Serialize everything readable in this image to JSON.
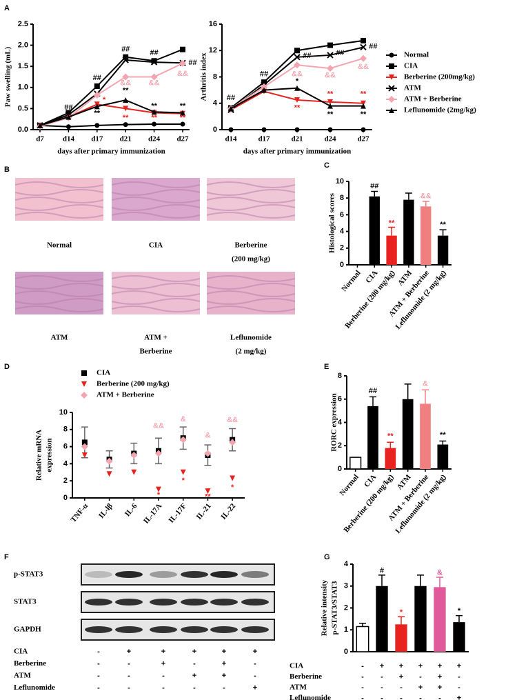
{
  "panel_labels": [
    "A",
    "B",
    "C",
    "D",
    "E",
    "F",
    "G"
  ],
  "histology": {
    "labels": [
      [
        "Normal"
      ],
      [
        "CIA"
      ],
      [
        "Berberine",
        "(200 mg/kg)"
      ],
      [
        "ATM"
      ],
      [
        "ATM +",
        "Berberine"
      ],
      [
        "Leflunomide",
        "(2 mg/kg)"
      ]
    ]
  },
  "blot": {
    "rows": [
      "p-STAT3",
      "STAT3",
      "GAPDH"
    ],
    "treatments": [
      {
        "name": "CIA",
        "signs": [
          "-",
          "+",
          "+",
          "+",
          "+",
          "+"
        ]
      },
      {
        "name": "Berberine",
        "signs": [
          "-",
          "-",
          "+",
          "-",
          "+",
          "-"
        ]
      },
      {
        "name": "ATM",
        "signs": [
          "-",
          "-",
          "-",
          "+",
          "+",
          "-"
        ]
      },
      {
        "name": "Leflunomide",
        "signs": [
          "-",
          "-",
          "-",
          "-",
          "-",
          "+"
        ]
      }
    ]
  },
  "chart_data": [
    {
      "type": "line",
      "ylabel": "Paw swelling (mL)",
      "xlabel": "days after primary immunization",
      "categories": [
        "d7",
        "d14",
        "d17",
        "d21",
        "d24",
        "d27"
      ],
      "ylim": [
        0,
        2.5
      ],
      "yticks": [
        {
          "value": 0,
          "label": "0.0"
        },
        0.5,
        {
          "value": 1,
          "label": "1.0"
        },
        1.5,
        {
          "value": 2,
          "label": "2.0"
        },
        2.5
      ],
      "legend": "right",
      "series": [
        {
          "name": "Normal",
          "color": "#000000",
          "marker": "circle",
          "values": [
            0.1,
            0.07,
            0.1,
            0.12,
            0.13,
            0.13
          ]
        },
        {
          "name": "CIA",
          "color": "#000000",
          "marker": "square",
          "values": [
            0.1,
            0.4,
            1.03,
            1.72,
            1.63,
            1.9
          ]
        },
        {
          "name": "Berberine (200mg/kg)",
          "color": "#e8231f",
          "marker": "tri-down",
          "values": [
            0.1,
            0.3,
            0.6,
            0.5,
            0.4,
            0.38
          ]
        },
        {
          "name": "ATM",
          "color": "#000000",
          "marker": "x",
          "values": [
            0.1,
            0.35,
            0.85,
            1.65,
            1.6,
            1.58
          ]
        },
        {
          "name": "ATM + Berberine",
          "color": "#f4a6b0",
          "marker": "diamond",
          "values": [
            0.08,
            0.28,
            0.82,
            1.25,
            1.25,
            1.57
          ]
        },
        {
          "name": "Leflunomide (2mg/kg)",
          "color": "#000000",
          "marker": "tri-up",
          "values": [
            0.1,
            0.3,
            0.55,
            0.7,
            0.42,
            0.4
          ]
        }
      ],
      "annotations": [
        {
          "text": "##",
          "index": 1,
          "y": 0.52,
          "color": "#000000"
        },
        {
          "text": "##",
          "index": 2,
          "y": 1.22,
          "color": "#000000"
        },
        {
          "text": "##",
          "index": 3,
          "y": 1.9,
          "color": "#000000"
        },
        {
          "text": "##",
          "index": 4,
          "y": 1.82,
          "color": "#000000"
        },
        {
          "text": "##",
          "index": 5.35,
          "y": 1.58,
          "color": "#000000"
        },
        {
          "text": "**",
          "index": 2,
          "y": 0.38,
          "color": "#000000"
        },
        {
          "text": "*",
          "index": 2.25,
          "y": 0.7,
          "color": "#e8231f"
        },
        {
          "text": "&",
          "index": 2,
          "y": 0.82,
          "color": "#f4a6b0"
        },
        {
          "text": "**",
          "index": 3,
          "y": 0.92,
          "color": "#000000"
        },
        {
          "text": "&&",
          "index": 3,
          "y": 1.1,
          "color": "#f4a6b0"
        },
        {
          "text": "**",
          "index": 3,
          "y": 0.28,
          "color": "#e8231f"
        },
        {
          "text": "**",
          "index": 4,
          "y": 0.55,
          "color": "#000000"
        },
        {
          "text": "&&",
          "index": 4,
          "y": 1.1,
          "color": "#f4a6b0"
        },
        {
          "text": "**",
          "index": 4,
          "y": 0.28,
          "color": "#e8231f"
        },
        {
          "text": "**",
          "index": 5,
          "y": 0.55,
          "color": "#000000"
        },
        {
          "text": "&&",
          "index": 5,
          "y": 1.32,
          "color": "#f4a6b0"
        },
        {
          "text": "**",
          "index": 5,
          "y": 0.28,
          "color": "#e8231f"
        }
      ]
    },
    {
      "type": "line",
      "ylabel": "Arthritis index",
      "xlabel": "days after primary immunization",
      "categories": [
        "d14",
        "d17",
        "d21",
        "d24",
        "d27"
      ],
      "ylim": [
        0,
        16
      ],
      "yticks": [
        0,
        4,
        8,
        12,
        16
      ],
      "series": [
        {
          "color": "#000000",
          "marker": "circle",
          "values": [
            0,
            0,
            0,
            0,
            0
          ]
        },
        {
          "color": "#000000",
          "marker": "square",
          "values": [
            3.3,
            7.2,
            12,
            12.8,
            13.5
          ]
        },
        {
          "color": "#e8231f",
          "marker": "tri-down",
          "values": [
            3,
            5.8,
            4.5,
            4.2,
            4
          ]
        },
        {
          "color": "#000000",
          "marker": "x",
          "values": [
            3,
            6.8,
            11,
            11.3,
            12.5
          ]
        },
        {
          "color": "#f4a6b0",
          "marker": "diamond",
          "values": [
            3.2,
            6.5,
            9.8,
            9.3,
            10.8
          ]
        },
        {
          "color": "#000000",
          "marker": "tri-up",
          "values": [
            3.2,
            6,
            6.3,
            3.6,
            3.6
          ]
        }
      ],
      "annotations": [
        {
          "text": "##",
          "index": 0,
          "y": 4.8,
          "color": "#000000"
        },
        {
          "text": "##",
          "index": 1,
          "y": 8.4,
          "color": "#000000"
        },
        {
          "text": "##",
          "index": 2.3,
          "y": 11.2,
          "color": "#000000"
        },
        {
          "text": "##",
          "index": 3.3,
          "y": 11.6,
          "color": "#000000"
        },
        {
          "text": "##",
          "index": 4.3,
          "y": 12.6,
          "color": "#000000"
        },
        {
          "text": "&&",
          "index": 2,
          "y": 8.4,
          "color": "#f4a6b0"
        },
        {
          "text": "&&",
          "index": 3,
          "y": 8.2,
          "color": "#f4a6b0"
        },
        {
          "text": "&&",
          "index": 4,
          "y": 9.5,
          "color": "#f4a6b0"
        },
        {
          "text": "*",
          "index": 2,
          "y": 7.3,
          "color": "#000000"
        },
        {
          "text": "**",
          "index": 2,
          "y": 3.3,
          "color": "#e8231f"
        },
        {
          "text": "**",
          "index": 3,
          "y": 5.4,
          "color": "#e8231f"
        },
        {
          "text": "**",
          "index": 4,
          "y": 5.4,
          "color": "#e8231f"
        },
        {
          "text": "**",
          "index": 3,
          "y": 2.3,
          "color": "#000000"
        },
        {
          "text": "**",
          "index": 4,
          "y": 2.3,
          "color": "#000000"
        }
      ]
    },
    {
      "type": "bar",
      "ylabel": "Histological scores",
      "categories": [
        "Normal",
        "CIA",
        "Berberine (200 mg/kg)",
        "ATM",
        "ATM + Berberine",
        "Leflunomide (2 mg/kg)"
      ],
      "values": [
        0,
        8.2,
        3.5,
        7.8,
        7,
        3.5
      ],
      "errors": [
        0,
        0.6,
        1,
        0.8,
        0.6,
        0.7
      ],
      "colors": [
        "#000000",
        "#000000",
        "#e8231f",
        "#000000",
        "#f08080",
        "#000000"
      ],
      "ylim": [
        0,
        10
      ],
      "yticks": [
        0,
        2,
        4,
        6,
        8,
        10
      ],
      "annotations": [
        {
          "text": "##",
          "index": 1,
          "y": 9.4,
          "color": "#000000"
        },
        {
          "text": "**",
          "index": 2,
          "y": 5,
          "color": "#e8231f"
        },
        {
          "text": "&&",
          "index": 4,
          "y": 8.2,
          "color": "#f4a6b0"
        },
        {
          "text": "**",
          "index": 5,
          "y": 4.8,
          "color": "#000000"
        }
      ]
    },
    {
      "type": "dot",
      "ylabel": [
        "Relative mRNA",
        "expression"
      ],
      "categories": [
        "TNF-α",
        "IL-lβ",
        "IL-6",
        "IL-17A",
        "IL-17F",
        "IL-21",
        "IL-22"
      ],
      "ylim": [
        0,
        10
      ],
      "yticks": [
        0,
        2,
        4,
        6,
        8,
        10
      ],
      "legend": "top",
      "series": [
        {
          "name": "CIA",
          "color": "#000000",
          "marker": "square",
          "values": [
            6.5,
            4.5,
            5.2,
            5.5,
            7,
            5,
            6.8
          ],
          "errors": [
            1.8,
            1,
            1.2,
            1.5,
            1.3,
            1.2,
            1.3
          ]
        },
        {
          "name": "Berberine (200 mg/kg)",
          "color": "#e8231f",
          "marker": "tri-down",
          "values": [
            5,
            2.8,
            3,
            1,
            3,
            0.8,
            2.3
          ]
        },
        {
          "name": "ATM + Berberine",
          "color": "#f4a6b0",
          "marker": "diamond",
          "values": [
            6,
            4.3,
            5,
            5.2,
            6.8,
            5.2,
            6.5
          ]
        }
      ],
      "annotations": [
        {
          "text": "&&",
          "index": 3,
          "y": 8.4,
          "color": "#f4a6b0"
        },
        {
          "text": "*",
          "index": 3,
          "y": 0.3,
          "color": "#e8231f"
        },
        {
          "text": "&",
          "index": 4,
          "y": 9.2,
          "color": "#f4a6b0"
        },
        {
          "text": "*",
          "index": 4,
          "y": 2,
          "color": "#e8231f"
        },
        {
          "text": "&",
          "index": 5,
          "y": 7.3,
          "color": "#f4a6b0"
        },
        {
          "text": "**",
          "index": 5,
          "y": 0.1,
          "color": "#e8231f"
        },
        {
          "text": "&&",
          "index": 6,
          "y": 9.1,
          "color": "#f4a6b0"
        },
        {
          "text": "*",
          "index": 6,
          "y": 1.2,
          "color": "#e8231f"
        }
      ]
    },
    {
      "type": "bar",
      "ylabel": "RORC expression",
      "categories": [
        "Normal",
        "CIA",
        "Berberine (200 mg/kg)",
        "ATM",
        "ATM + Berberine",
        "Leflunomide (2 mg/kg)"
      ],
      "values": [
        1,
        5.4,
        1.8,
        6,
        5.6,
        2.1
      ],
      "errors": [
        0,
        0.8,
        0.5,
        1.3,
        1.2,
        0.3
      ],
      "colors": [
        "#ffffff",
        "#000000",
        "#e8231f",
        "#000000",
        "#f08080",
        "#000000"
      ],
      "ylim": [
        0,
        8
      ],
      "yticks": [
        0,
        2,
        4,
        6,
        8
      ],
      "annotations": [
        {
          "text": "##",
          "index": 1,
          "y": 6.7,
          "color": "#000000"
        },
        {
          "text": "**",
          "index": 2,
          "y": 2.8,
          "color": "#e8231f"
        },
        {
          "text": "&",
          "index": 4,
          "y": 7.3,
          "color": "#f4a6b0"
        },
        {
          "text": "**",
          "index": 5,
          "y": 2.9,
          "color": "#000000"
        }
      ]
    },
    {
      "type": "bar",
      "ylabel": [
        "Relative intensity",
        "p-STAT3/STAT3"
      ],
      "values": [
        1.15,
        3,
        1.25,
        3,
        2.95,
        1.35
      ],
      "errors": [
        0.15,
        0.5,
        0.35,
        0.5,
        0.45,
        0.3
      ],
      "colors": [
        "#ffffff",
        "#000000",
        "#e8231f",
        "#000000",
        "#e05a9a",
        "#000000"
      ],
      "ylim": [
        0,
        4
      ],
      "yticks": [
        0,
        1,
        2,
        3,
        4
      ],
      "treatments": [
        {
          "name": "CIA",
          "signs": [
            "-",
            "+",
            "+",
            "+",
            "+",
            "+"
          ]
        },
        {
          "name": "Berberine",
          "signs": [
            "-",
            "-",
            "+",
            "-",
            "+",
            "-"
          ]
        },
        {
          "name": "ATM",
          "signs": [
            "-",
            "-",
            "-",
            "+",
            "+",
            "-"
          ]
        },
        {
          "name": "Leflunomide",
          "signs": [
            "-",
            "-",
            "-",
            "-",
            "-",
            "+"
          ]
        }
      ],
      "annotations": [
        {
          "text": "#",
          "index": 1,
          "y": 3.7,
          "color": "#000000"
        },
        {
          "text": "*",
          "index": 2,
          "y": 1.8,
          "color": "#e8231f"
        },
        {
          "text": "&",
          "index": 4,
          "y": 3.6,
          "color": "#e05a9a"
        },
        {
          "text": "*",
          "index": 5,
          "y": 1.85,
          "color": "#000000"
        }
      ]
    }
  ]
}
